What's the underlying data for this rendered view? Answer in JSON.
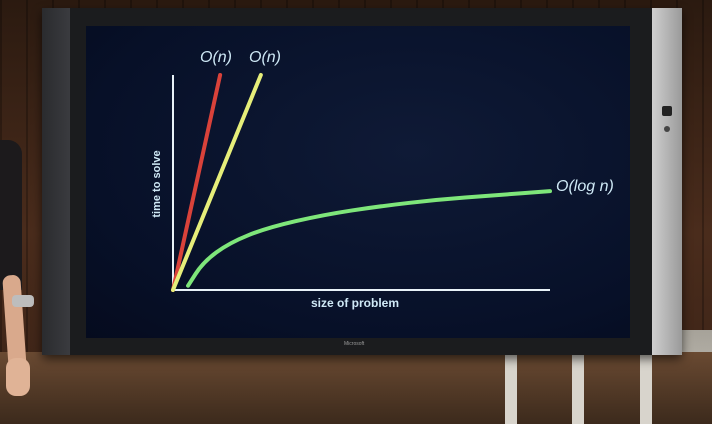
{
  "device": {
    "brand_label": "Microsoft"
  },
  "chart_data": {
    "type": "line",
    "title": "",
    "xlabel": "size of problem",
    "ylabel": "time to solve",
    "xlim": [
      0,
      100
    ],
    "ylim": [
      0,
      100
    ],
    "grid": false,
    "legend": "inline",
    "series": [
      {
        "name": "O(n)",
        "color": "#d9423a",
        "x": [
          0,
          12.5
        ],
        "y": [
          0,
          100
        ]
      },
      {
        "name": "O(n)",
        "color": "#e6ee7a",
        "x": [
          0,
          23.3
        ],
        "y": [
          0,
          100
        ]
      },
      {
        "name": "O(log n)",
        "color": "#7ee67a",
        "x": [
          4,
          8,
          15,
          25,
          40,
          55,
          70,
          85,
          100
        ],
        "y": [
          2,
          13,
          22,
          29,
          35,
          39,
          42,
          44,
          46
        ]
      }
    ]
  }
}
